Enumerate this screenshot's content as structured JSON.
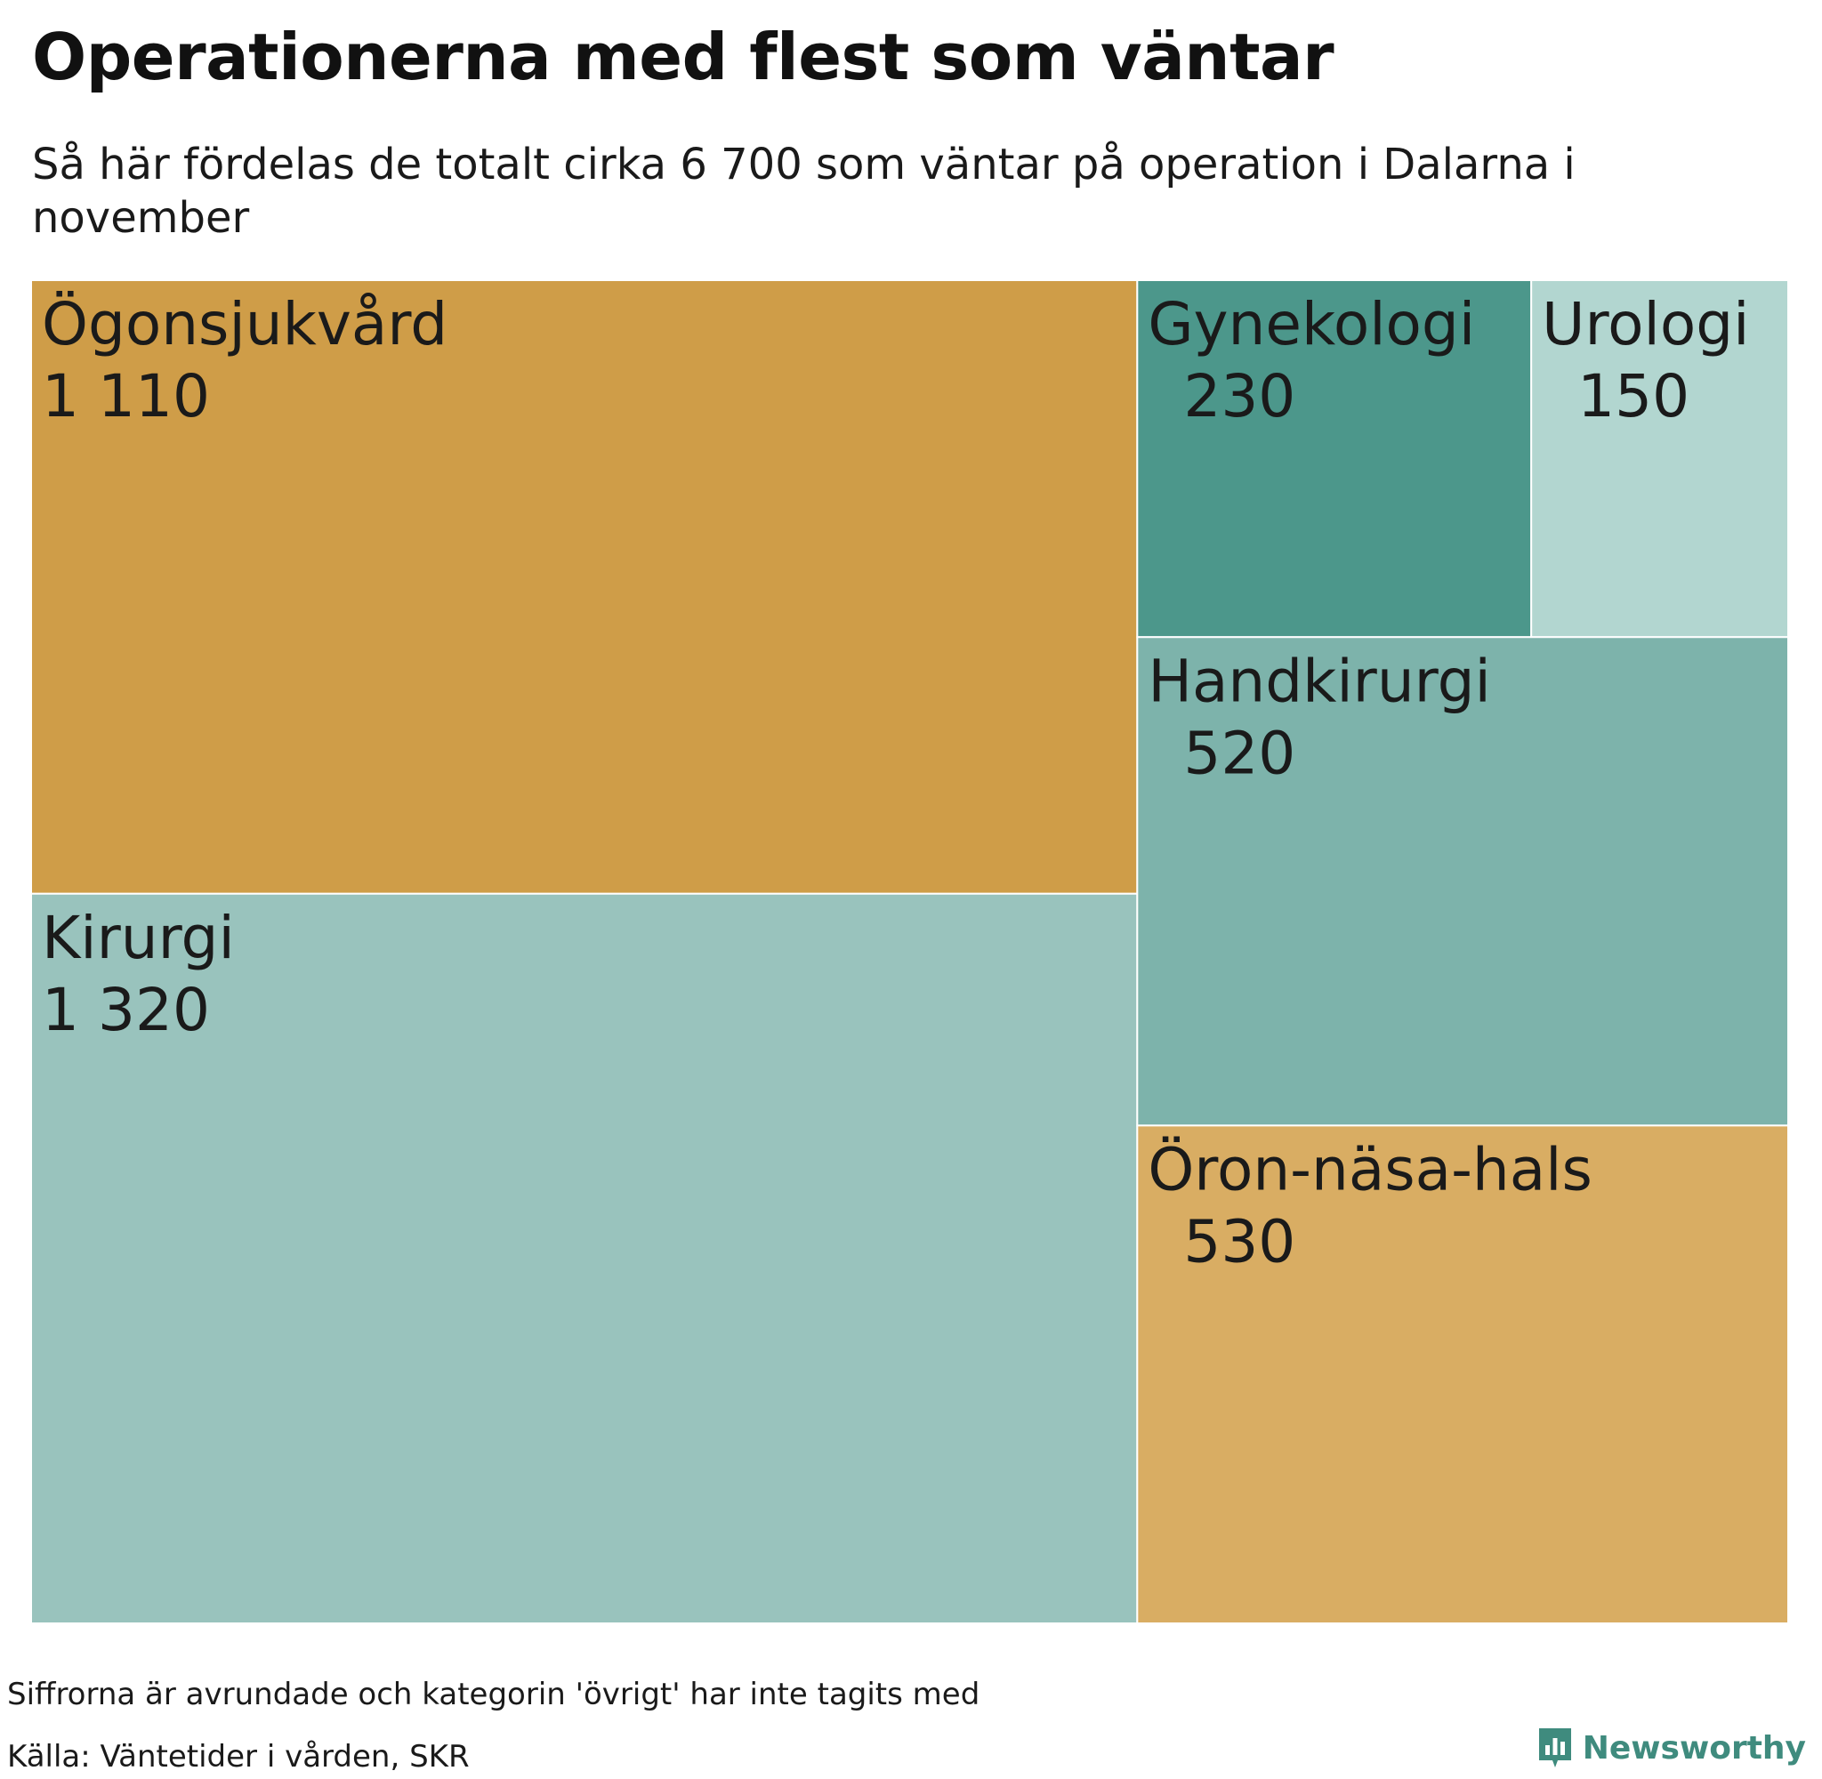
{
  "chart_data": {
    "type": "treemap",
    "title": "Operationerna med flest som väntar",
    "subtitle": "Så här fördelas de totalt cirka 6 700 som väntar på operation i Dalarna i november",
    "items": [
      {
        "name": "Ögonsjukvård",
        "value": 1110,
        "label": "1 110",
        "color": "#cf9d48"
      },
      {
        "name": "Kirurgi",
        "value": 1320,
        "label": "1 320",
        "color": "#99c3bd"
      },
      {
        "name": "Gynekologi",
        "value": 230,
        "label": "230",
        "color": "#4c978b"
      },
      {
        "name": "Urologi",
        "value": 150,
        "label": "150",
        "color": "#b2d6d0"
      },
      {
        "name": "Handkirurgi",
        "value": 520,
        "label": "520",
        "color": "#7db3ab"
      },
      {
        "name": "Öron-näsa-hals",
        "value": 530,
        "label": "530",
        "color": "#d9ad63"
      }
    ]
  },
  "footer": {
    "note": "Siffrorna är avrundade och kategorin 'övrigt' har inte tagits med",
    "source": "Källa: Väntetider i vården, SKR",
    "brand": "Newsworthy",
    "brand_color": "#3f8b7e",
    "brand_icon": "newsworthy-logo-icon"
  }
}
